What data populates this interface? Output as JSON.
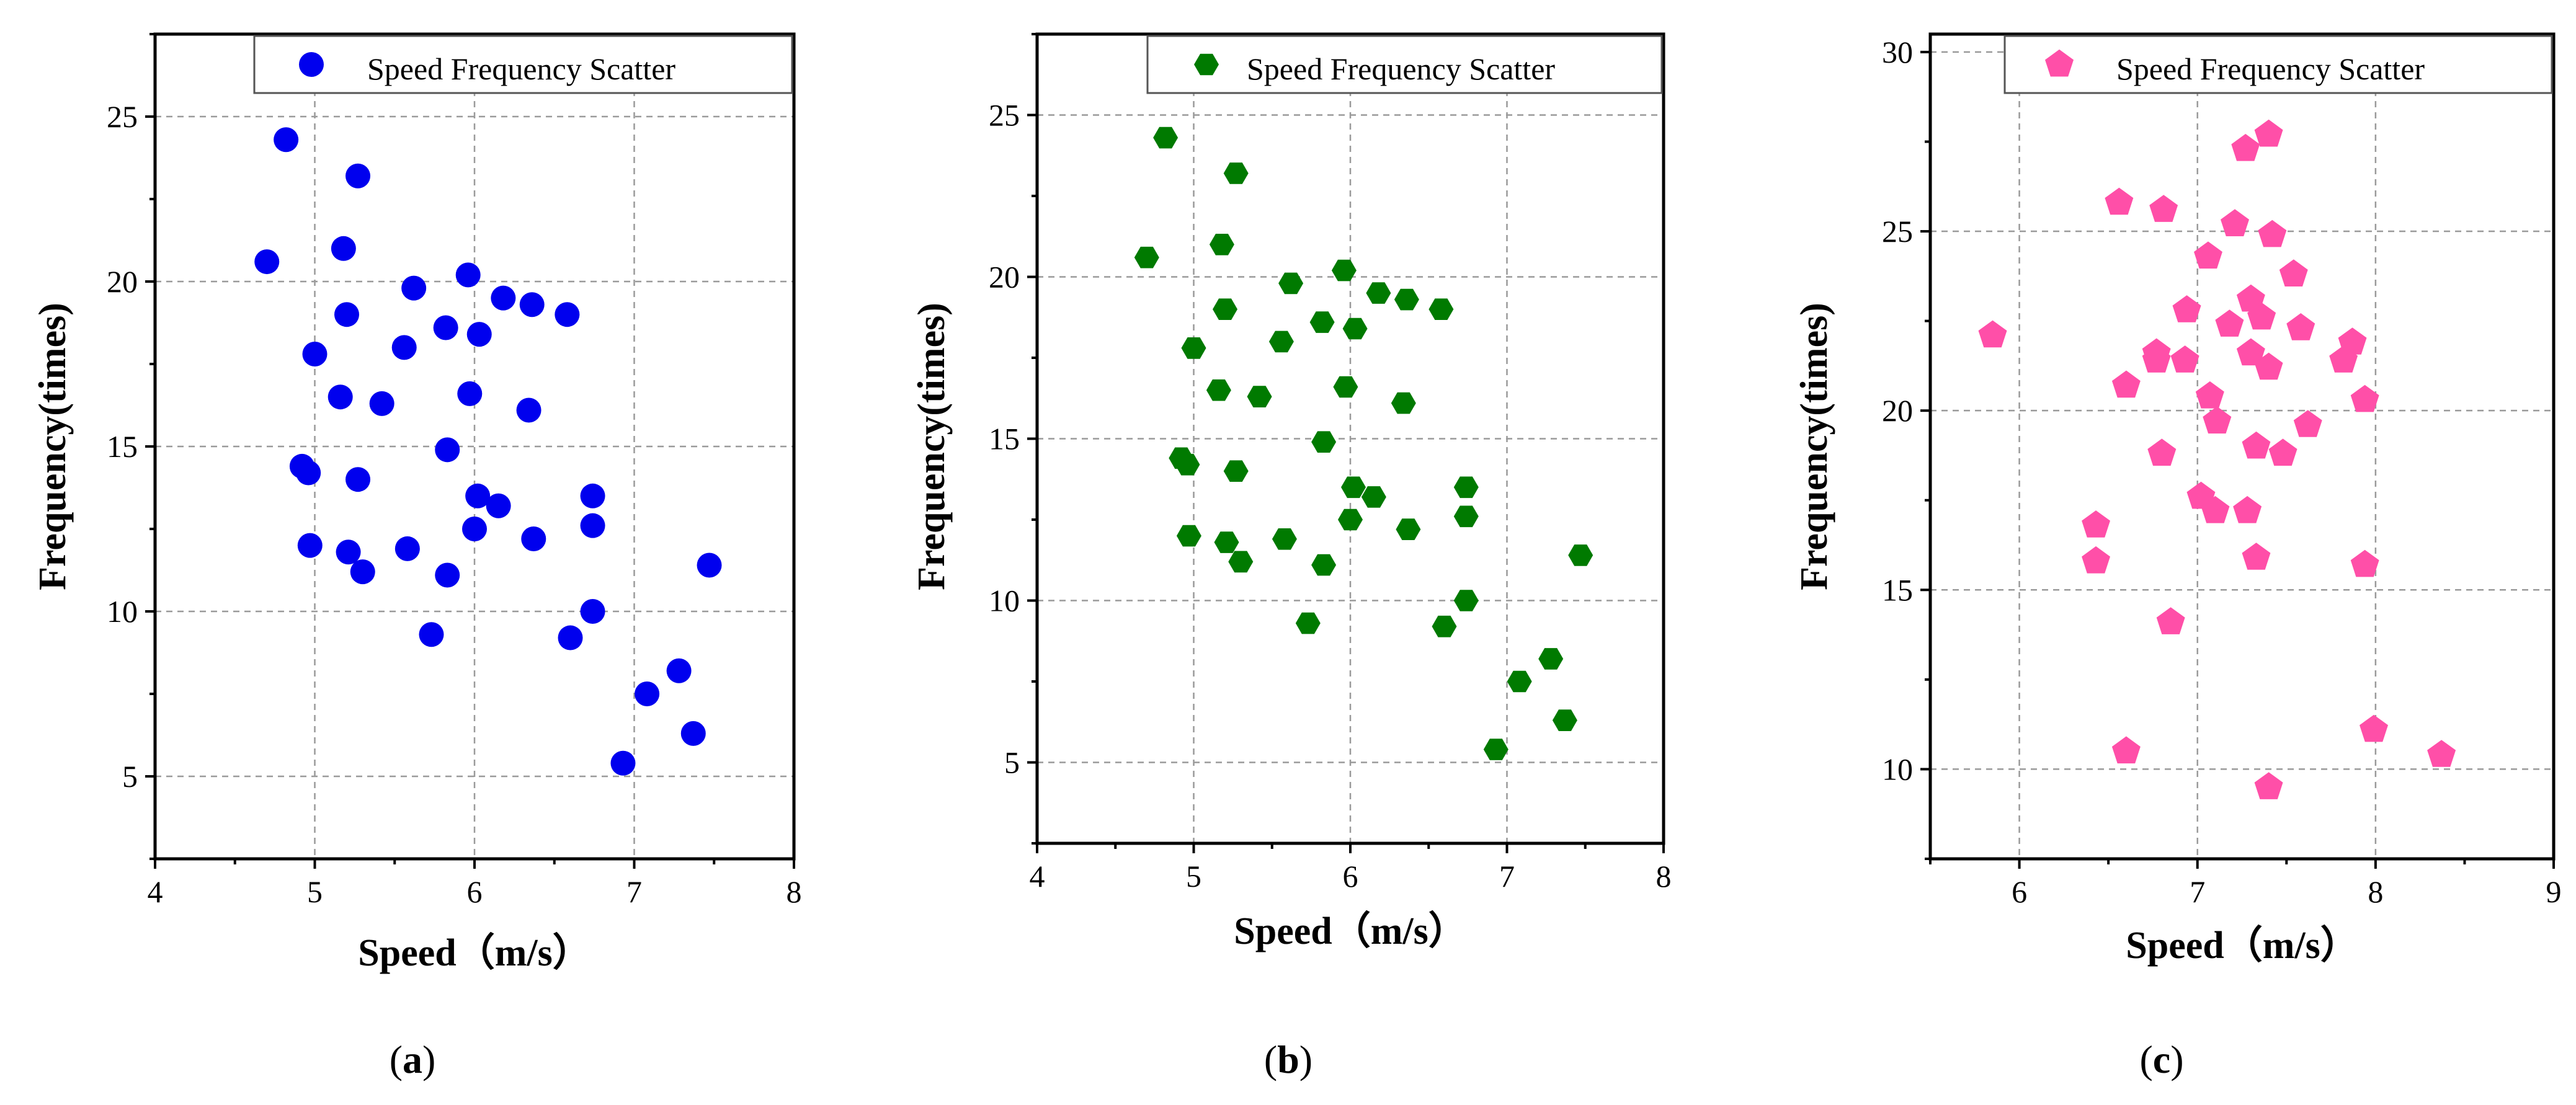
{
  "chart_data": [
    {
      "type": "scatter",
      "panel": "a",
      "panel_label": "a",
      "xlabel": "Speed（m/s）",
      "ylabel": "Frequency(times)",
      "xlim": [
        4,
        8
      ],
      "ylim": [
        2.5,
        27.5
      ],
      "xticks": [
        4,
        5,
        6,
        7,
        8
      ],
      "yticks": [
        5,
        10,
        15,
        20,
        25
      ],
      "grid": true,
      "legend": {
        "label": "Speed Frequency Scatter",
        "position": "top-right"
      },
      "marker": "circle",
      "color": "#0000ee",
      "points": [
        [
          4.82,
          24.3
        ],
        [
          5.27,
          23.2
        ],
        [
          4.7,
          20.6
        ],
        [
          5.18,
          21.0
        ],
        [
          5.96,
          20.2
        ],
        [
          5.62,
          19.8
        ],
        [
          5.2,
          19.0
        ],
        [
          6.18,
          19.5
        ],
        [
          6.36,
          19.3
        ],
        [
          6.58,
          19.0
        ],
        [
          5.82,
          18.6
        ],
        [
          6.03,
          18.4
        ],
        [
          5.56,
          18.0
        ],
        [
          5.0,
          17.8
        ],
        [
          5.16,
          16.5
        ],
        [
          5.42,
          16.3
        ],
        [
          5.97,
          16.6
        ],
        [
          6.34,
          16.1
        ],
        [
          5.83,
          14.9
        ],
        [
          4.92,
          14.4
        ],
        [
          4.96,
          14.2
        ],
        [
          5.27,
          14.0
        ],
        [
          6.02,
          13.5
        ],
        [
          6.15,
          13.2
        ],
        [
          6.74,
          13.5
        ],
        [
          6.74,
          12.6
        ],
        [
          6.0,
          12.5
        ],
        [
          6.37,
          12.2
        ],
        [
          4.97,
          12.0
        ],
        [
          5.21,
          11.8
        ],
        [
          5.58,
          11.9
        ],
        [
          5.3,
          11.2
        ],
        [
          5.83,
          11.1
        ],
        [
          7.47,
          11.4
        ],
        [
          6.74,
          10.0
        ],
        [
          5.73,
          9.3
        ],
        [
          6.6,
          9.2
        ],
        [
          7.28,
          8.2
        ],
        [
          7.08,
          7.5
        ],
        [
          7.37,
          6.3
        ],
        [
          6.93,
          5.4
        ]
      ]
    },
    {
      "type": "scatter",
      "panel": "b",
      "panel_label": "b",
      "xlabel": "Speed（m/s）",
      "ylabel": "Frequency(times)",
      "xlim": [
        4,
        8
      ],
      "ylim": [
        2.5,
        27.5
      ],
      "xticks": [
        4,
        5,
        6,
        7,
        8
      ],
      "yticks": [
        5,
        10,
        15,
        20,
        25
      ],
      "grid": true,
      "legend": {
        "label": "Speed Frequency Scatter",
        "position": "top-right"
      },
      "marker": "hexagon",
      "color": "#007a00",
      "points": [
        [
          4.82,
          24.3
        ],
        [
          5.27,
          23.2
        ],
        [
          4.7,
          20.6
        ],
        [
          5.18,
          21.0
        ],
        [
          5.96,
          20.2
        ],
        [
          5.62,
          19.8
        ],
        [
          5.2,
          19.0
        ],
        [
          6.18,
          19.5
        ],
        [
          6.36,
          19.3
        ],
        [
          6.58,
          19.0
        ],
        [
          5.82,
          18.6
        ],
        [
          6.03,
          18.4
        ],
        [
          5.56,
          18.0
        ],
        [
          5.0,
          17.8
        ],
        [
          5.16,
          16.5
        ],
        [
          5.42,
          16.3
        ],
        [
          5.97,
          16.6
        ],
        [
          6.34,
          16.1
        ],
        [
          5.83,
          14.9
        ],
        [
          4.92,
          14.4
        ],
        [
          4.96,
          14.2
        ],
        [
          5.27,
          14.0
        ],
        [
          6.02,
          13.5
        ],
        [
          6.15,
          13.2
        ],
        [
          6.74,
          13.5
        ],
        [
          6.74,
          12.6
        ],
        [
          6.0,
          12.5
        ],
        [
          6.37,
          12.2
        ],
        [
          4.97,
          12.0
        ],
        [
          5.21,
          11.8
        ],
        [
          5.58,
          11.9
        ],
        [
          5.3,
          11.2
        ],
        [
          5.83,
          11.1
        ],
        [
          7.47,
          11.4
        ],
        [
          6.74,
          10.0
        ],
        [
          5.73,
          9.3
        ],
        [
          6.6,
          9.2
        ],
        [
          7.28,
          8.2
        ],
        [
          7.08,
          7.5
        ],
        [
          7.37,
          6.3
        ],
        [
          6.93,
          5.4
        ]
      ]
    },
    {
      "type": "scatter",
      "panel": "c",
      "panel_label": "c",
      "xlabel": "Speed（m/s）",
      "ylabel": "Frequency(times)",
      "xlim": [
        5.5,
        9
      ],
      "ylim": [
        7.5,
        30.5
      ],
      "xticks": [
        6,
        7,
        8,
        9
      ],
      "yticks": [
        10,
        15,
        20,
        25,
        30
      ],
      "grid": true,
      "legend": {
        "label": "Speed Frequency Scatter",
        "position": "top-right"
      },
      "marker": "pentagon",
      "color": "#ff4fa8",
      "points": [
        [
          7.4,
          27.7
        ],
        [
          7.27,
          27.3
        ],
        [
          6.56,
          25.8
        ],
        [
          6.81,
          25.6
        ],
        [
          7.21,
          25.2
        ],
        [
          7.42,
          24.9
        ],
        [
          7.06,
          24.3
        ],
        [
          7.54,
          23.8
        ],
        [
          7.3,
          23.1
        ],
        [
          6.94,
          22.8
        ],
        [
          7.36,
          22.6
        ],
        [
          7.18,
          22.4
        ],
        [
          7.58,
          22.3
        ],
        [
          5.85,
          22.1
        ],
        [
          7.87,
          21.9
        ],
        [
          6.77,
          21.6
        ],
        [
          6.77,
          21.4
        ],
        [
          6.93,
          21.4
        ],
        [
          7.3,
          21.6
        ],
        [
          7.82,
          21.4
        ],
        [
          7.4,
          21.2
        ],
        [
          6.6,
          20.7
        ],
        [
          7.07,
          20.4
        ],
        [
          7.94,
          20.3
        ],
        [
          7.11,
          19.7
        ],
        [
          7.62,
          19.6
        ],
        [
          7.33,
          19.0
        ],
        [
          6.8,
          18.8
        ],
        [
          7.48,
          18.8
        ],
        [
          7.02,
          17.6
        ],
        [
          7.1,
          17.2
        ],
        [
          7.28,
          17.2
        ],
        [
          6.43,
          16.8
        ],
        [
          7.33,
          15.9
        ],
        [
          6.43,
          15.8
        ],
        [
          7.94,
          15.7
        ],
        [
          6.85,
          14.1
        ],
        [
          7.99,
          11.1
        ],
        [
          6.6,
          10.5
        ],
        [
          8.37,
          10.4
        ],
        [
          7.4,
          9.5
        ]
      ]
    }
  ]
}
